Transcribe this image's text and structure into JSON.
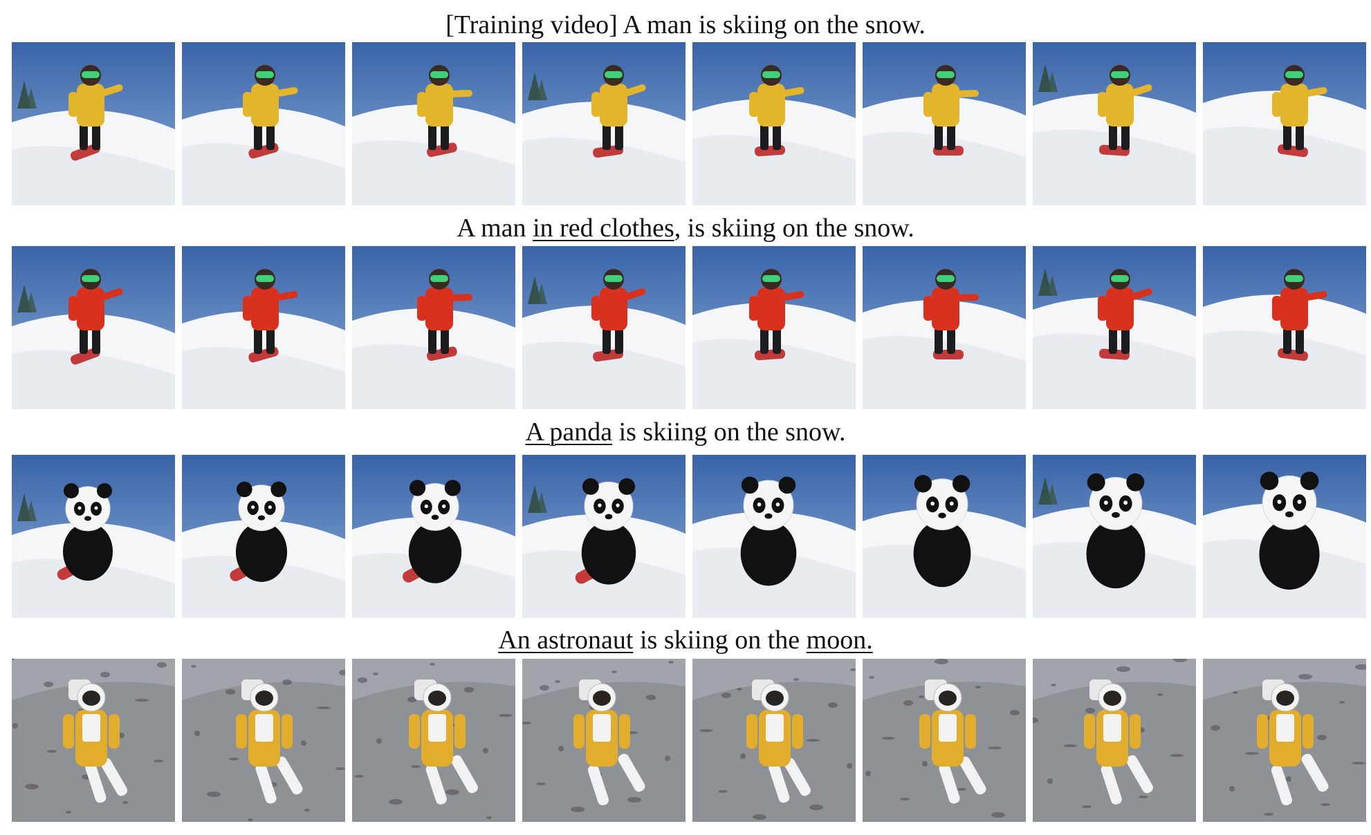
{
  "rows": [
    {
      "id": "training",
      "scene": "snow",
      "subject": "skier-yellow",
      "caption": [
        {
          "text": "[Training video] A man is skiing on the snow.",
          "underline": false
        }
      ]
    },
    {
      "id": "red-clothes",
      "scene": "snow",
      "subject": "skier-red",
      "caption": [
        {
          "text": "A man ",
          "underline": false
        },
        {
          "text": "in red clothes",
          "underline": true
        },
        {
          "text": ", is skiing on the snow.",
          "underline": false
        }
      ]
    },
    {
      "id": "panda",
      "scene": "snow",
      "subject": "panda",
      "caption": [
        {
          "text": "A panda",
          "underline": true
        },
        {
          "text": " is skiing on the snow.",
          "underline": false
        }
      ]
    },
    {
      "id": "astronaut",
      "scene": "moon",
      "subject": "astronaut",
      "caption": [
        {
          "text": "An astronaut",
          "underline": true
        },
        {
          "text": " is skiing on the ",
          "underline": false
        },
        {
          "text": "moon.",
          "underline": true
        }
      ]
    }
  ],
  "frames_per_row": 8,
  "colors": {
    "sky": "#3a64a8",
    "sky_light": "#8fb0dc",
    "snow": "#f4f6f8",
    "snow_shadow": "#d9dee4",
    "jacket_yellow": "#e3b52a",
    "jacket_red": "#d8321e",
    "pants": "#1d1d1f",
    "goggles": "#3fd07a",
    "board_red": "#c23a3a",
    "moon_surface": "#8e9196",
    "moon_dark": "#4a4d52",
    "suit_yellow": "#e2ad2c",
    "suit_white": "#f2f2f2"
  }
}
